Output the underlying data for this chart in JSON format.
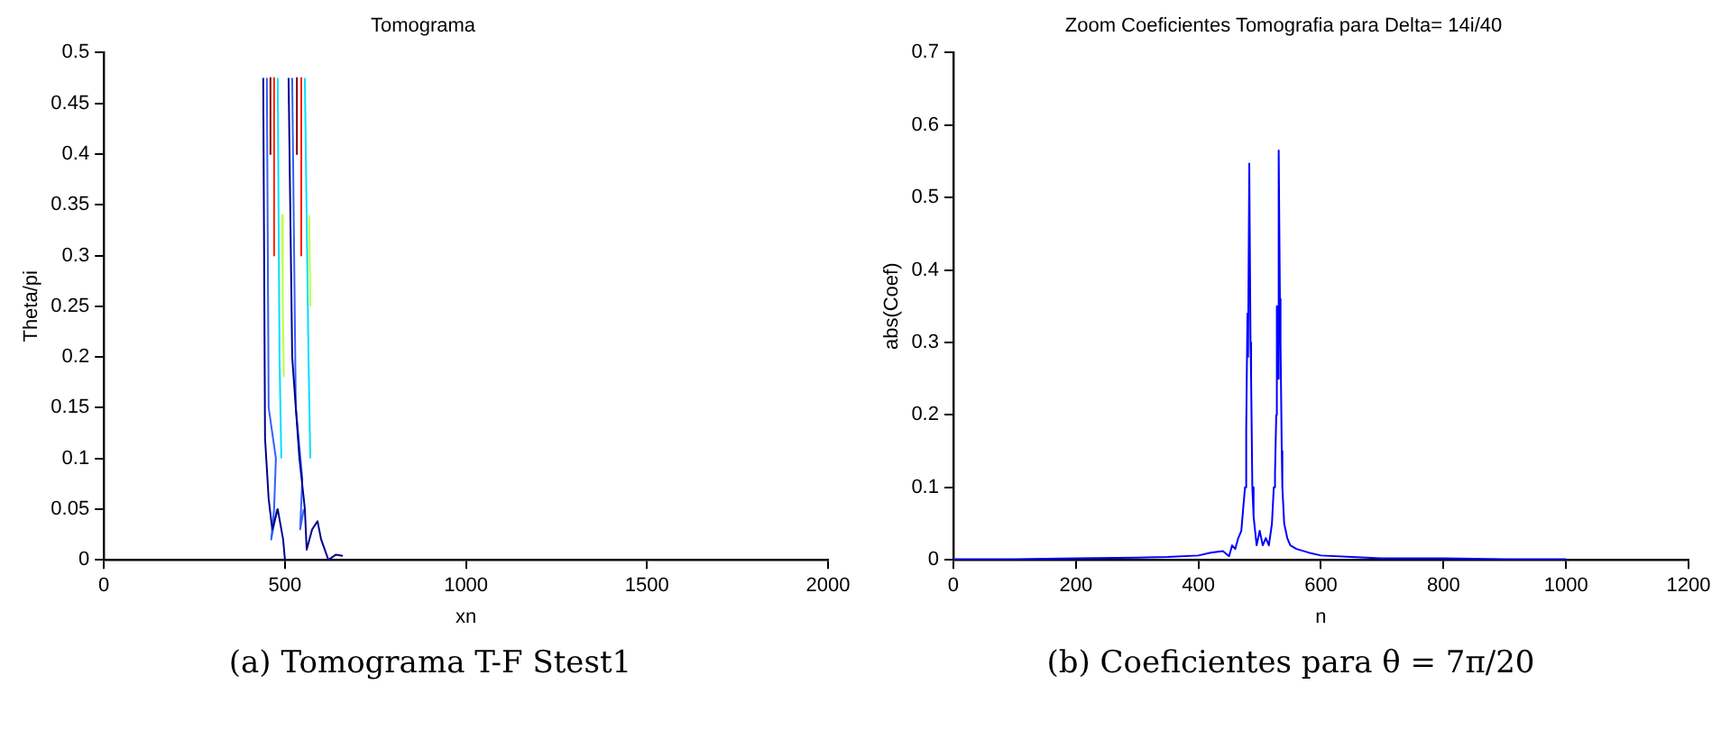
{
  "chart_data": [
    {
      "type": "line",
      "title": "Tomograma",
      "xlabel": "xn",
      "ylabel": "Theta/pi",
      "annotations": [
        "(a) Tomograma T-F Stest1"
      ],
      "xlim": [
        0,
        2000
      ],
      "xticks": [
        0,
        500,
        1000,
        1500,
        2000
      ],
      "ylim": [
        0,
        0.5
      ],
      "yticks": [
        0,
        0.05,
        0.1,
        0.15,
        0.2,
        0.25,
        0.3,
        0.35,
        0.4,
        0.45,
        0.5
      ],
      "grid": false,
      "legend": false,
      "marker": "none",
      "series": [
        {
          "color": "#00008f",
          "x": [
            440,
            445,
            455,
            465,
            480,
            495,
            500,
            null,
            510,
            520,
            540,
            555,
            560,
            575,
            590,
            600,
            620,
            640,
            660
          ],
          "values": [
            0.475,
            0.12,
            0.06,
            0.03,
            0.05,
            0.02,
            0.0,
            null,
            0.475,
            0.2,
            0.1,
            0.05,
            0.01,
            0.03,
            0.038,
            0.02,
            0.0,
            0.005,
            0.004
          ]
        },
        {
          "color": "#3060ff",
          "x": [
            450,
            455,
            475,
            470,
            462,
            478,
            null,
            520,
            530,
            548,
            542,
            552
          ],
          "values": [
            0.475,
            0.15,
            0.1,
            0.05,
            0.02,
            0.05,
            null,
            0.475,
            0.15,
            0.08,
            0.03,
            0.05
          ]
        },
        {
          "color": "#00e0ff",
          "x": [
            480,
            485,
            490,
            null,
            555,
            565,
            570
          ],
          "values": [
            0.475,
            0.2,
            0.1,
            null,
            0.475,
            0.2,
            0.1
          ]
        },
        {
          "color": "#c0ff40",
          "x": [
            492,
            494,
            497,
            null,
            567,
            570
          ],
          "values": [
            0.34,
            0.25,
            0.18,
            null,
            0.34,
            0.25
          ]
        },
        {
          "color": "#ff2000",
          "x": [
            470,
            470,
            null,
            545,
            545
          ],
          "values": [
            0.475,
            0.3,
            null,
            0.475,
            0.3
          ]
        },
        {
          "color": "#800000",
          "x": [
            460,
            460,
            null,
            533,
            533
          ],
          "values": [
            0.475,
            0.4,
            null,
            0.475,
            0.4
          ]
        }
      ]
    },
    {
      "type": "line",
      "title": "Zoom Coeficientes Tomografia para Delta= 14i/40",
      "xlabel": "n",
      "ylabel": "abs(Coef)",
      "annotations": [
        "(b) Coeficientes para θ = 7π/20"
      ],
      "xlim": [
        0,
        1200
      ],
      "xticks": [
        0,
        200,
        400,
        600,
        800,
        1000,
        1200
      ],
      "ylim": [
        0,
        0.7
      ],
      "yticks": [
        0,
        0.1,
        0.2,
        0.3,
        0.4,
        0.5,
        0.6,
        0.7
      ],
      "grid": false,
      "legend": false,
      "marker": "none",
      "series": [
        {
          "color": "#0000ff",
          "x": [
            0,
            100,
            200,
            300,
            350,
            400,
            420,
            440,
            450,
            455,
            460,
            465,
            470,
            473,
            476,
            478,
            480,
            481,
            483,
            485,
            486,
            488,
            490,
            495,
            500,
            505,
            510,
            515,
            520,
            523,
            525,
            527,
            528,
            530,
            531,
            533,
            534,
            536,
            537,
            540,
            545,
            550,
            560,
            580,
            600,
            650,
            700,
            800,
            900,
            1000
          ],
          "values": [
            0.001,
            0.001,
            0.002,
            0.003,
            0.004,
            0.006,
            0.01,
            0.012,
            0.005,
            0.02,
            0.015,
            0.03,
            0.04,
            0.07,
            0.1,
            0.18,
            0.34,
            0.28,
            0.547,
            0.3,
            0.25,
            0.1,
            0.06,
            0.02,
            0.04,
            0.02,
            0.03,
            0.02,
            0.05,
            0.1,
            0.12,
            0.2,
            0.35,
            0.25,
            0.565,
            0.36,
            0.3,
            0.15,
            0.1,
            0.05,
            0.03,
            0.02,
            0.015,
            0.01,
            0.006,
            0.004,
            0.002,
            0.002,
            0.001,
            0.001
          ]
        }
      ]
    }
  ]
}
